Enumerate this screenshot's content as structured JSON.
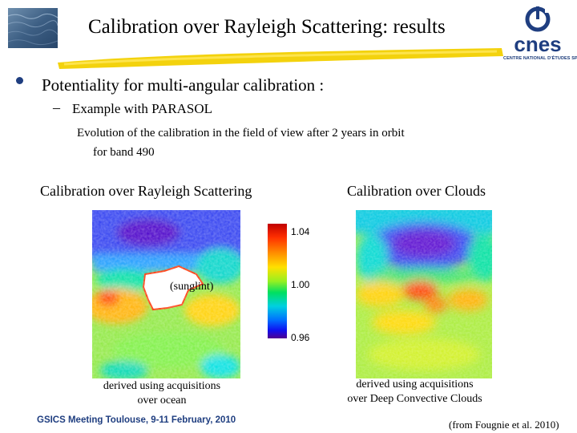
{
  "header": {
    "title": "Calibration over Rayleigh Scattering: results",
    "logo_text": "cnes",
    "logo_subtitle": "CENTRE NATIONAL D'ÉTUDES SPATIALES"
  },
  "bullets": {
    "main": "Potentiality for multi-angular calibration :",
    "sub": "Example with PARASOL",
    "description_line1": "Evolution of the calibration in the field of view after 2 years in orbit",
    "description_line2": "for band 490"
  },
  "panels": {
    "left": {
      "heading": "Calibration over Rayleigh Scattering",
      "inset_label": "(sunglint)",
      "caption_line1": "derived using acquisitions",
      "caption_line2": "over ocean"
    },
    "right": {
      "heading": "Calibration over Clouds",
      "caption_line1": "derived using acquisitions",
      "caption_line2": "over Deep Convective Clouds"
    }
  },
  "colorbar": {
    "max": "1.04",
    "mid": "1.00",
    "min": "0.96"
  },
  "footer": {
    "left": "GSICS Meeting Toulouse, 9-11 February, 2010",
    "right": "(from Fougnie et al. 2010)"
  },
  "colors": {
    "logo_blue": "#1f3e80",
    "highlight": "#f2d000"
  }
}
